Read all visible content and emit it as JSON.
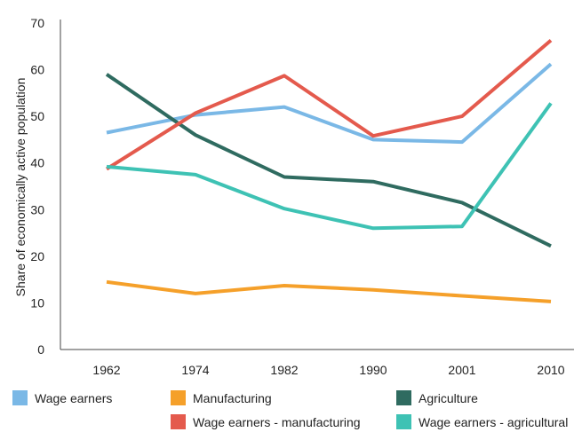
{
  "chart_data": {
    "type": "line",
    "title": "",
    "xlabel": "",
    "ylabel": "Share of economically active population",
    "x": [
      "1962",
      "1974",
      "1982",
      "1990",
      "2001",
      "2010"
    ],
    "ylim": [
      0,
      70
    ],
    "yticks": [
      0,
      10,
      20,
      30,
      40,
      50,
      60,
      70
    ],
    "grid": false,
    "legend_position": "bottom",
    "series": [
      {
        "name": "Wage earners",
        "color": "#7ab8e6",
        "values": [
          46.5,
          50.3,
          52,
          45,
          44.5,
          61.2
        ]
      },
      {
        "name": "Manufacturing",
        "color": "#f5a02a",
        "values": [
          14.5,
          12,
          13.7,
          12.8,
          11.5,
          10.3
        ]
      },
      {
        "name": "Agriculture",
        "color": "#2f6b60",
        "values": [
          59,
          46,
          37,
          36,
          31.5,
          22.2
        ]
      },
      {
        "name": "Wage earners - manufacturing",
        "color": "#e45a4d",
        "values": [
          38.7,
          50.7,
          58.7,
          45.8,
          50,
          66.3
        ]
      },
      {
        "name": "Wage earners - agricultural",
        "color": "#3ec2b4",
        "values": [
          39.2,
          37.5,
          30.2,
          26,
          26.4,
          52.8
        ]
      }
    ]
  }
}
